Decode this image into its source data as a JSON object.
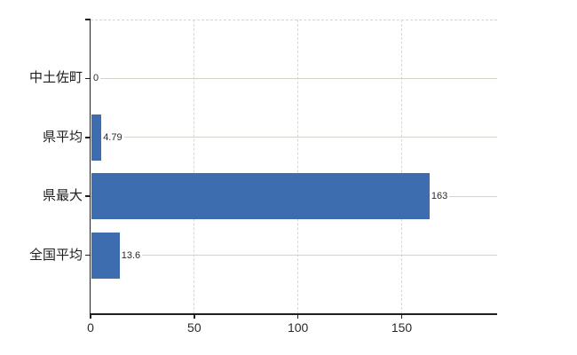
{
  "page": {
    "background": "#ffffff"
  },
  "chart_data": {
    "type": "bar",
    "orientation": "horizontal",
    "title": "",
    "xlabel": "",
    "ylabel": "",
    "categories": [
      "中土佐町",
      "県平均",
      "県最大",
      "全国平均"
    ],
    "values": [
      0,
      4.79,
      163,
      13.6
    ],
    "value_labels": [
      "0",
      "4.79",
      "163",
      "13.6"
    ],
    "x_ticks": [
      0,
      50,
      100,
      150
    ],
    "x_tick_labels": [
      "0",
      "50",
      "100",
      "150"
    ],
    "xlim": [
      0,
      196
    ],
    "grid": true,
    "legend": false,
    "colors": {
      "bar": "#3d6dae",
      "axis": "#1f1f1f",
      "h_gridline": "#cfd6c9",
      "v_gridline": "#d7d7d7",
      "top_border": "#d4d4d4",
      "label": "#2b2b2b",
      "background": "#ffffff"
    }
  }
}
